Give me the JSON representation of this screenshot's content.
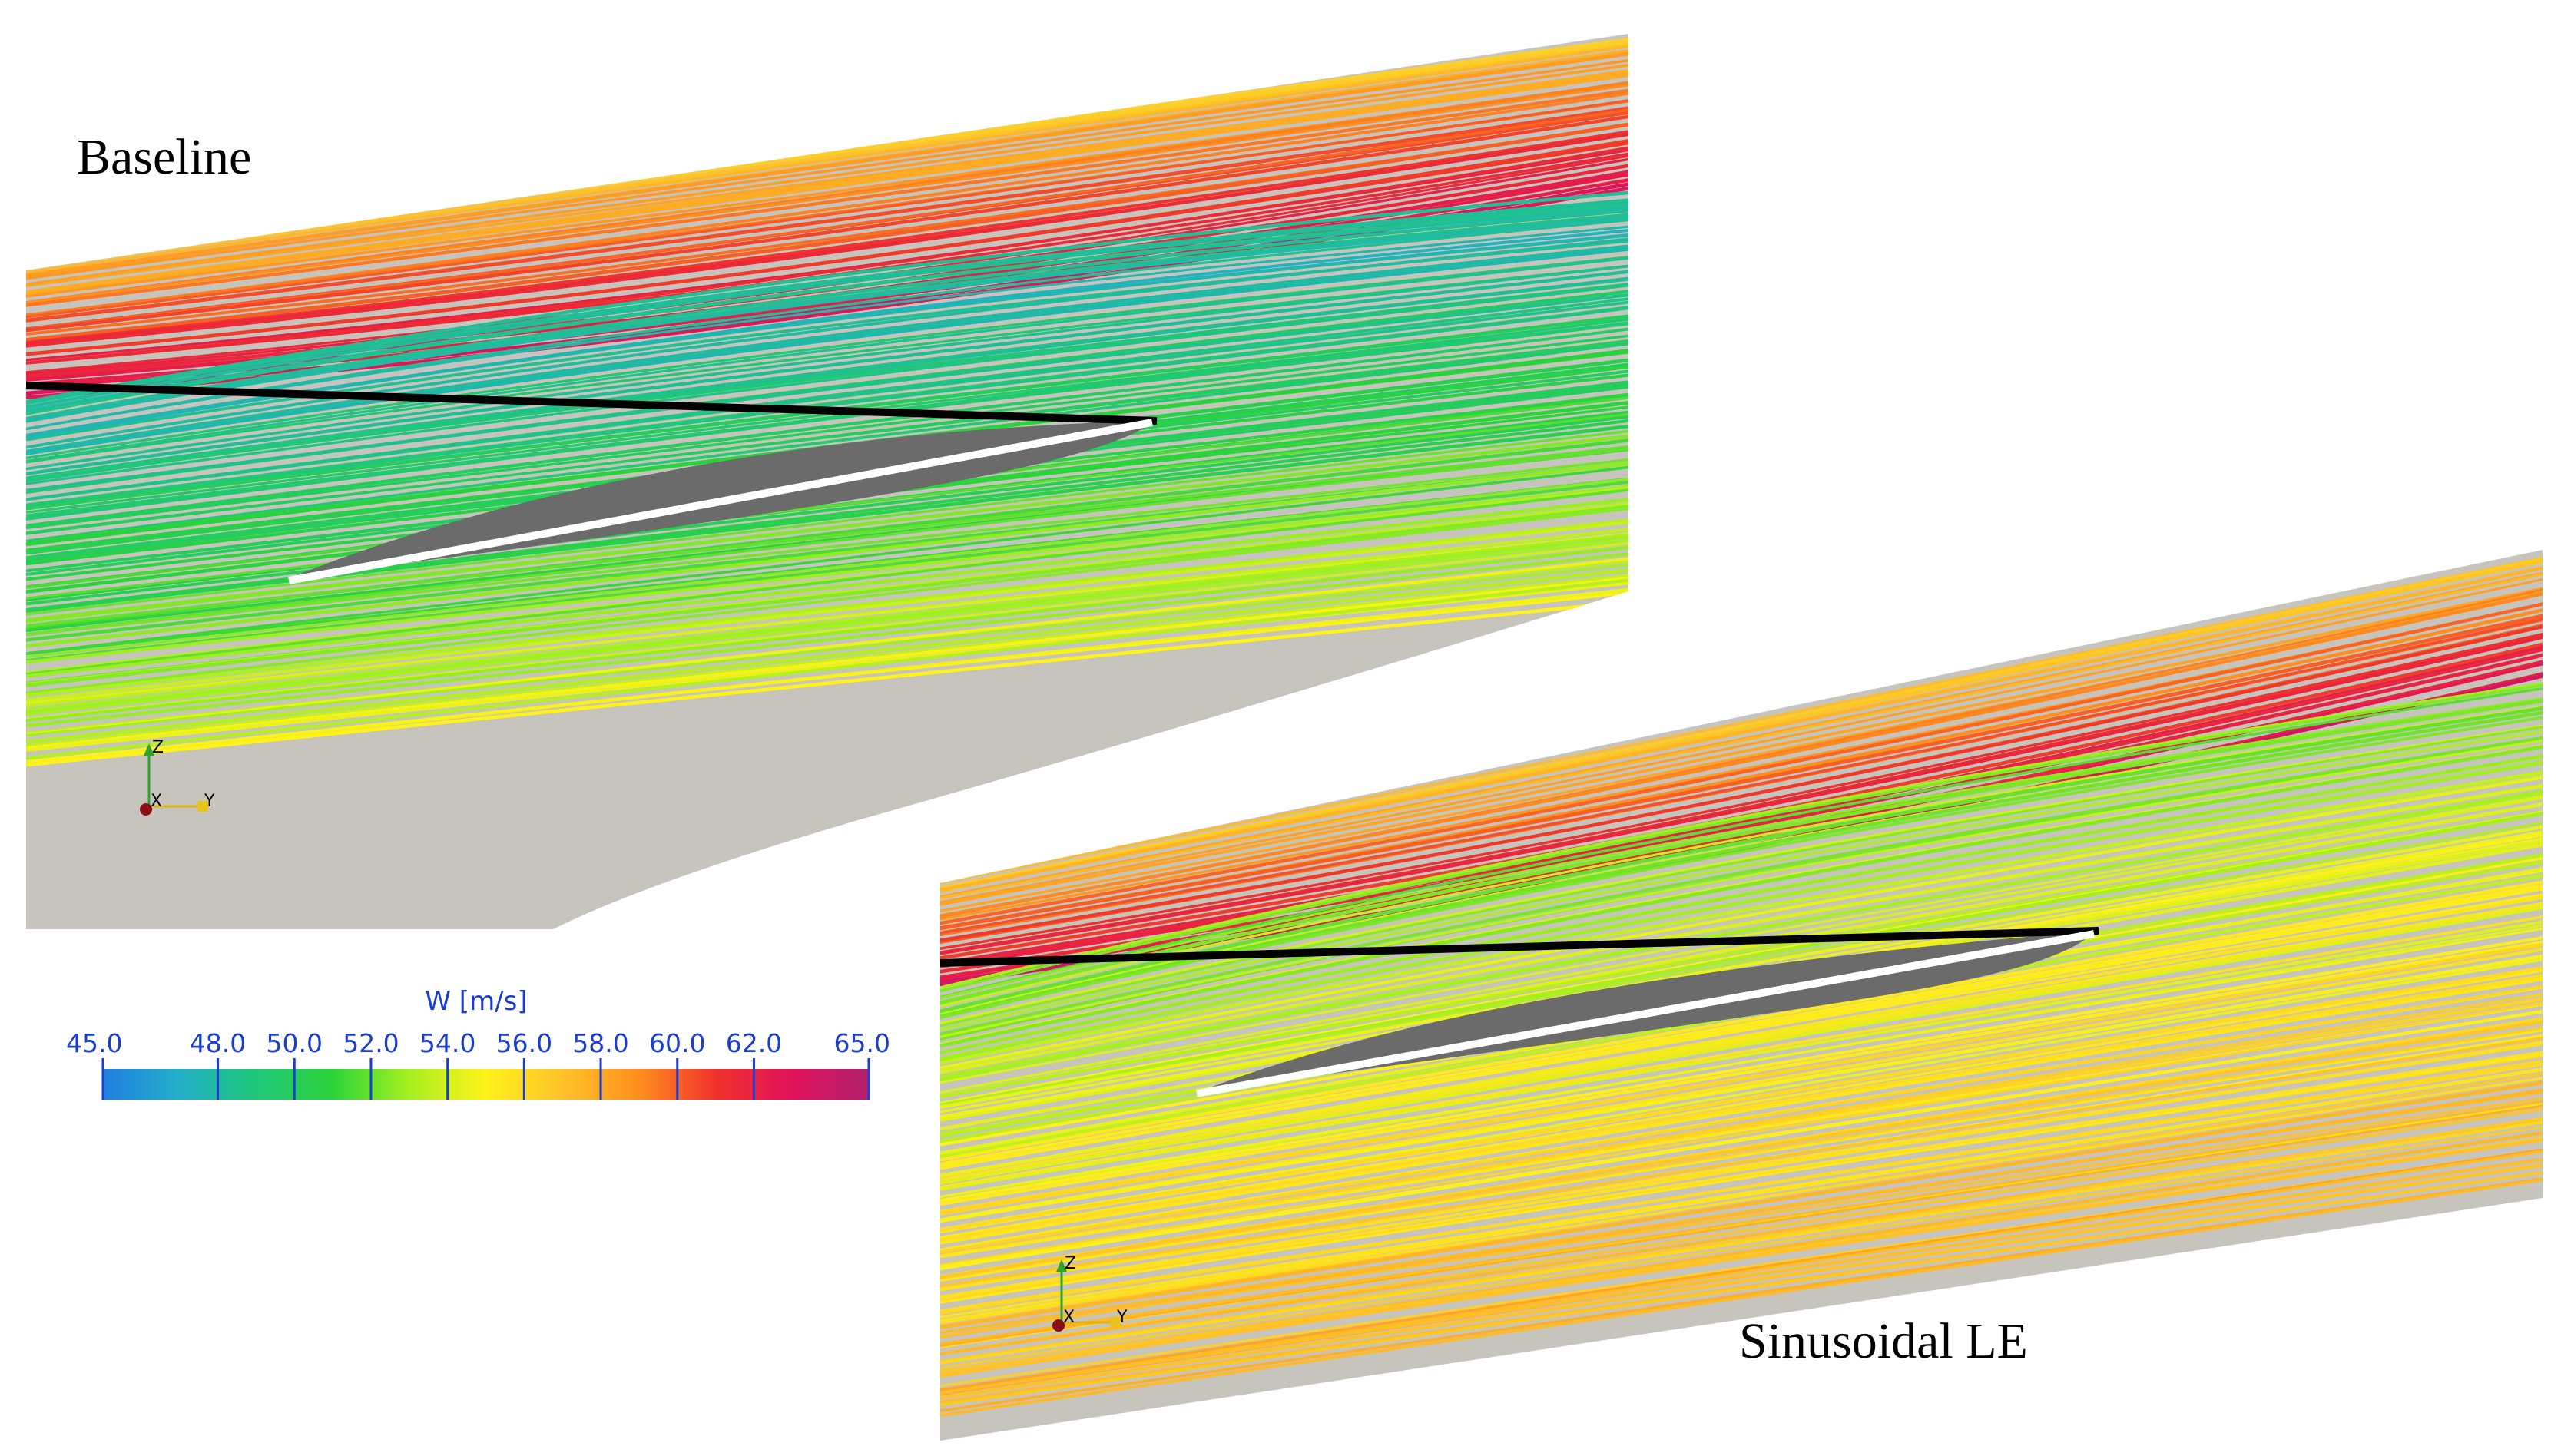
{
  "panels": [
    {
      "title": "Baseline",
      "axes": {
        "z": "Z",
        "x": "X",
        "y": "Y"
      }
    },
    {
      "title": "Sinusoidal LE",
      "axes": {
        "z": "Z",
        "x": "X",
        "y": "Y"
      }
    }
  ],
  "colorbar": {
    "label": "W [m/s]",
    "min": 45.0,
    "max": 65.0,
    "tick_labels": [
      "45.0",
      "48.0",
      "50.0",
      "52.0",
      "54.0",
      "56.0",
      "58.0",
      "60.0",
      "62.0",
      "65.0"
    ],
    "tick_values": [
      45,
      48,
      50,
      52,
      54,
      56,
      58,
      60,
      62,
      65
    ],
    "stops": [
      "#1f7fe0",
      "#22b0c8",
      "#1fc77a",
      "#2bd43a",
      "#a6f020",
      "#fff21a",
      "#ffc229",
      "#ff8f1f",
      "#f0322b",
      "#e0125a",
      "#b2206e"
    ]
  },
  "colors": {
    "background": "#ffffff",
    "domain": "#c6c4bd",
    "blade_shadow": "#6b6b6b",
    "pressure_side_line": "#000000",
    "suction_side_line": "#ffffff"
  }
}
